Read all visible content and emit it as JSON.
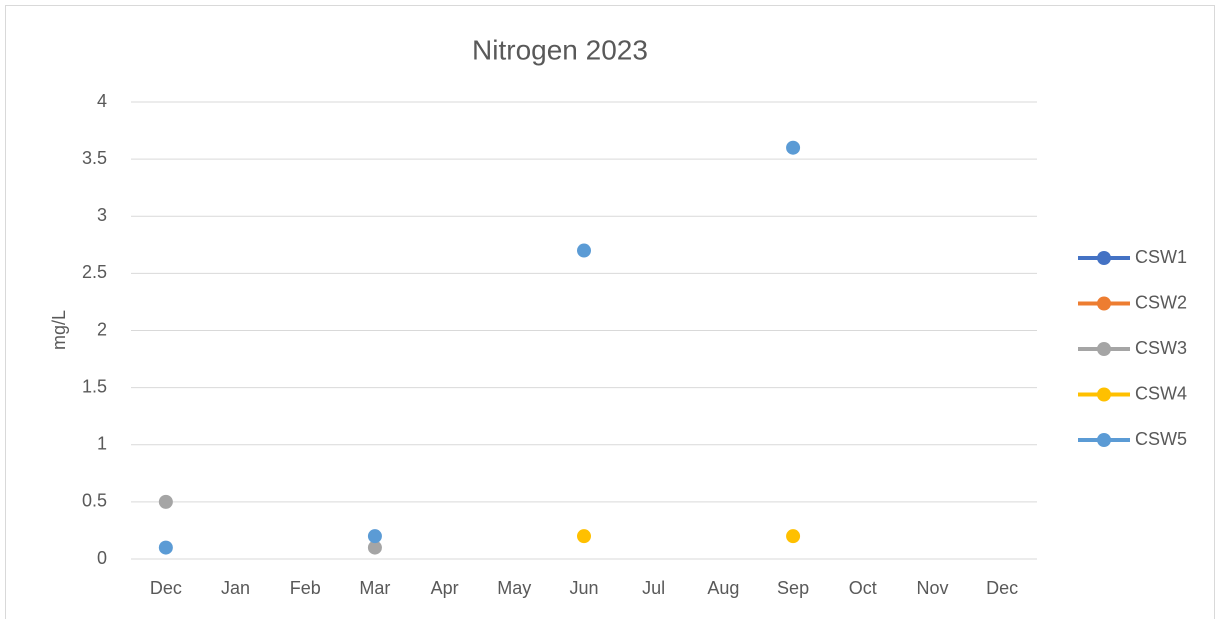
{
  "chart_data": {
    "type": "line",
    "title": "Nitrogen 2023",
    "y_label": "mg/L",
    "categories": [
      "Dec",
      "Jan",
      "Feb",
      "Mar",
      "Apr",
      "May",
      "Jun",
      "Jul",
      "Aug",
      "Sep",
      "Oct",
      "Nov",
      "Dec"
    ],
    "series": [
      {
        "name": "CSW1",
        "color": "#4472c4",
        "values": [
          null,
          null,
          null,
          null,
          null,
          null,
          null,
          null,
          null,
          null,
          null,
          null,
          null
        ]
      },
      {
        "name": "CSW2",
        "color": "#ed7d31",
        "values": [
          null,
          null,
          null,
          null,
          null,
          null,
          null,
          null,
          null,
          null,
          null,
          null,
          null
        ]
      },
      {
        "name": "CSW3",
        "color": "#a5a5a5",
        "values": [
          0.5,
          null,
          null,
          0.1,
          null,
          null,
          null,
          null,
          null,
          null,
          null,
          null,
          null
        ]
      },
      {
        "name": "CSW4",
        "color": "#ffc000",
        "values": [
          null,
          null,
          null,
          null,
          null,
          null,
          0.2,
          null,
          null,
          0.2,
          null,
          null,
          null
        ]
      },
      {
        "name": "CSW5",
        "color": "#5b9bd5",
        "values": [
          0.1,
          null,
          null,
          0.2,
          null,
          null,
          2.7,
          null,
          null,
          3.6,
          null,
          null,
          null
        ]
      }
    ],
    "ylim": [
      0,
      4
    ],
    "yticks": [
      0,
      0.5,
      1,
      1.5,
      2,
      2.5,
      3,
      3.5,
      4
    ],
    "grid": true,
    "legend": "right"
  }
}
